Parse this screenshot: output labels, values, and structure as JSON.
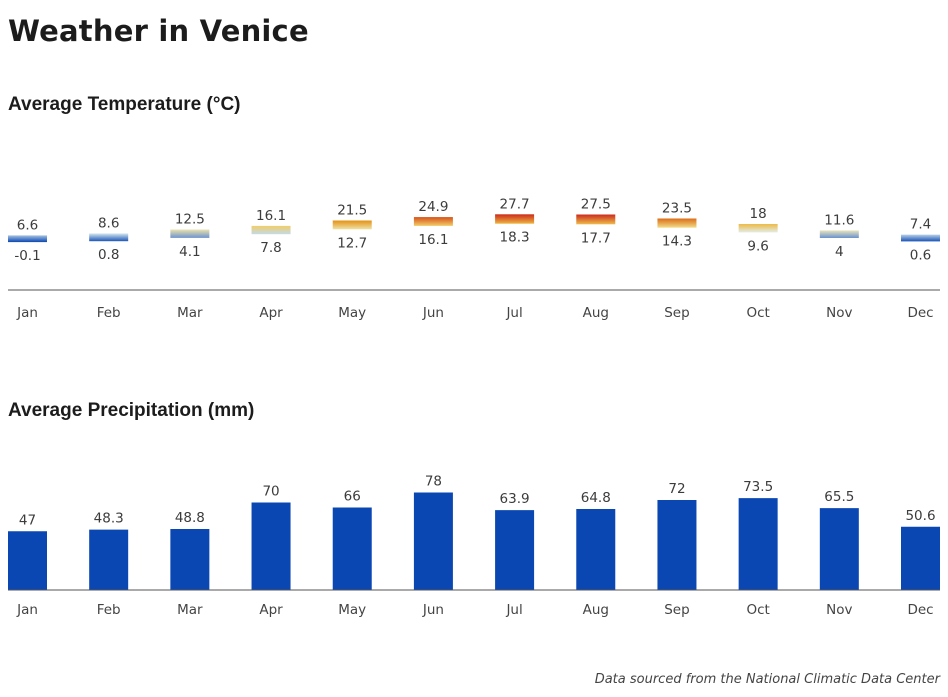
{
  "page": {
    "title": "Weather in Venice",
    "footnote": "Data sourced from the National Climatic Data Center"
  },
  "colors": {
    "precip_bar": "#0a47b2",
    "axis": "#555555",
    "temp_cold": "#0a47b2",
    "temp_mild": "#dfeff2",
    "temp_warm": "#f5d97a",
    "temp_hot": "#e69a10",
    "temp_very_hot": "#cc2a1c"
  },
  "chart_data": [
    {
      "type": "range-bar",
      "title": "Average Temperature (°C)",
      "xlabel": "",
      "ylabel": "",
      "categories": [
        "Jan",
        "Feb",
        "Mar",
        "Apr",
        "May",
        "Jun",
        "Jul",
        "Aug",
        "Sep",
        "Oct",
        "Nov",
        "Dec"
      ],
      "series": [
        {
          "name": "",
          "key": "high",
          "values": [
            6.6,
            8.6,
            12.5,
            16.1,
            21.5,
            24.9,
            27.7,
            27.5,
            23.5,
            18,
            11.6,
            7.4
          ]
        },
        {
          "name": "",
          "key": "low",
          "values": [
            -0.1,
            0.8,
            4.1,
            7.8,
            12.7,
            16.1,
            18.3,
            17.7,
            14.3,
            9.6,
            4,
            0.6
          ]
        }
      ],
      "grid": false,
      "legend": "none"
    },
    {
      "type": "bar",
      "title": "Average Precipitation (mm)",
      "xlabel": "",
      "ylabel": "",
      "categories": [
        "Jan",
        "Feb",
        "Mar",
        "Apr",
        "May",
        "Jun",
        "Jul",
        "Aug",
        "Sep",
        "Oct",
        "Nov",
        "Dec"
      ],
      "values": [
        47,
        48.3,
        48.8,
        70,
        66,
        78,
        63.9,
        64.8,
        72,
        73.5,
        65.5,
        50.6
      ],
      "ylim": [
        0,
        80
      ],
      "grid": false,
      "legend": "none"
    }
  ]
}
